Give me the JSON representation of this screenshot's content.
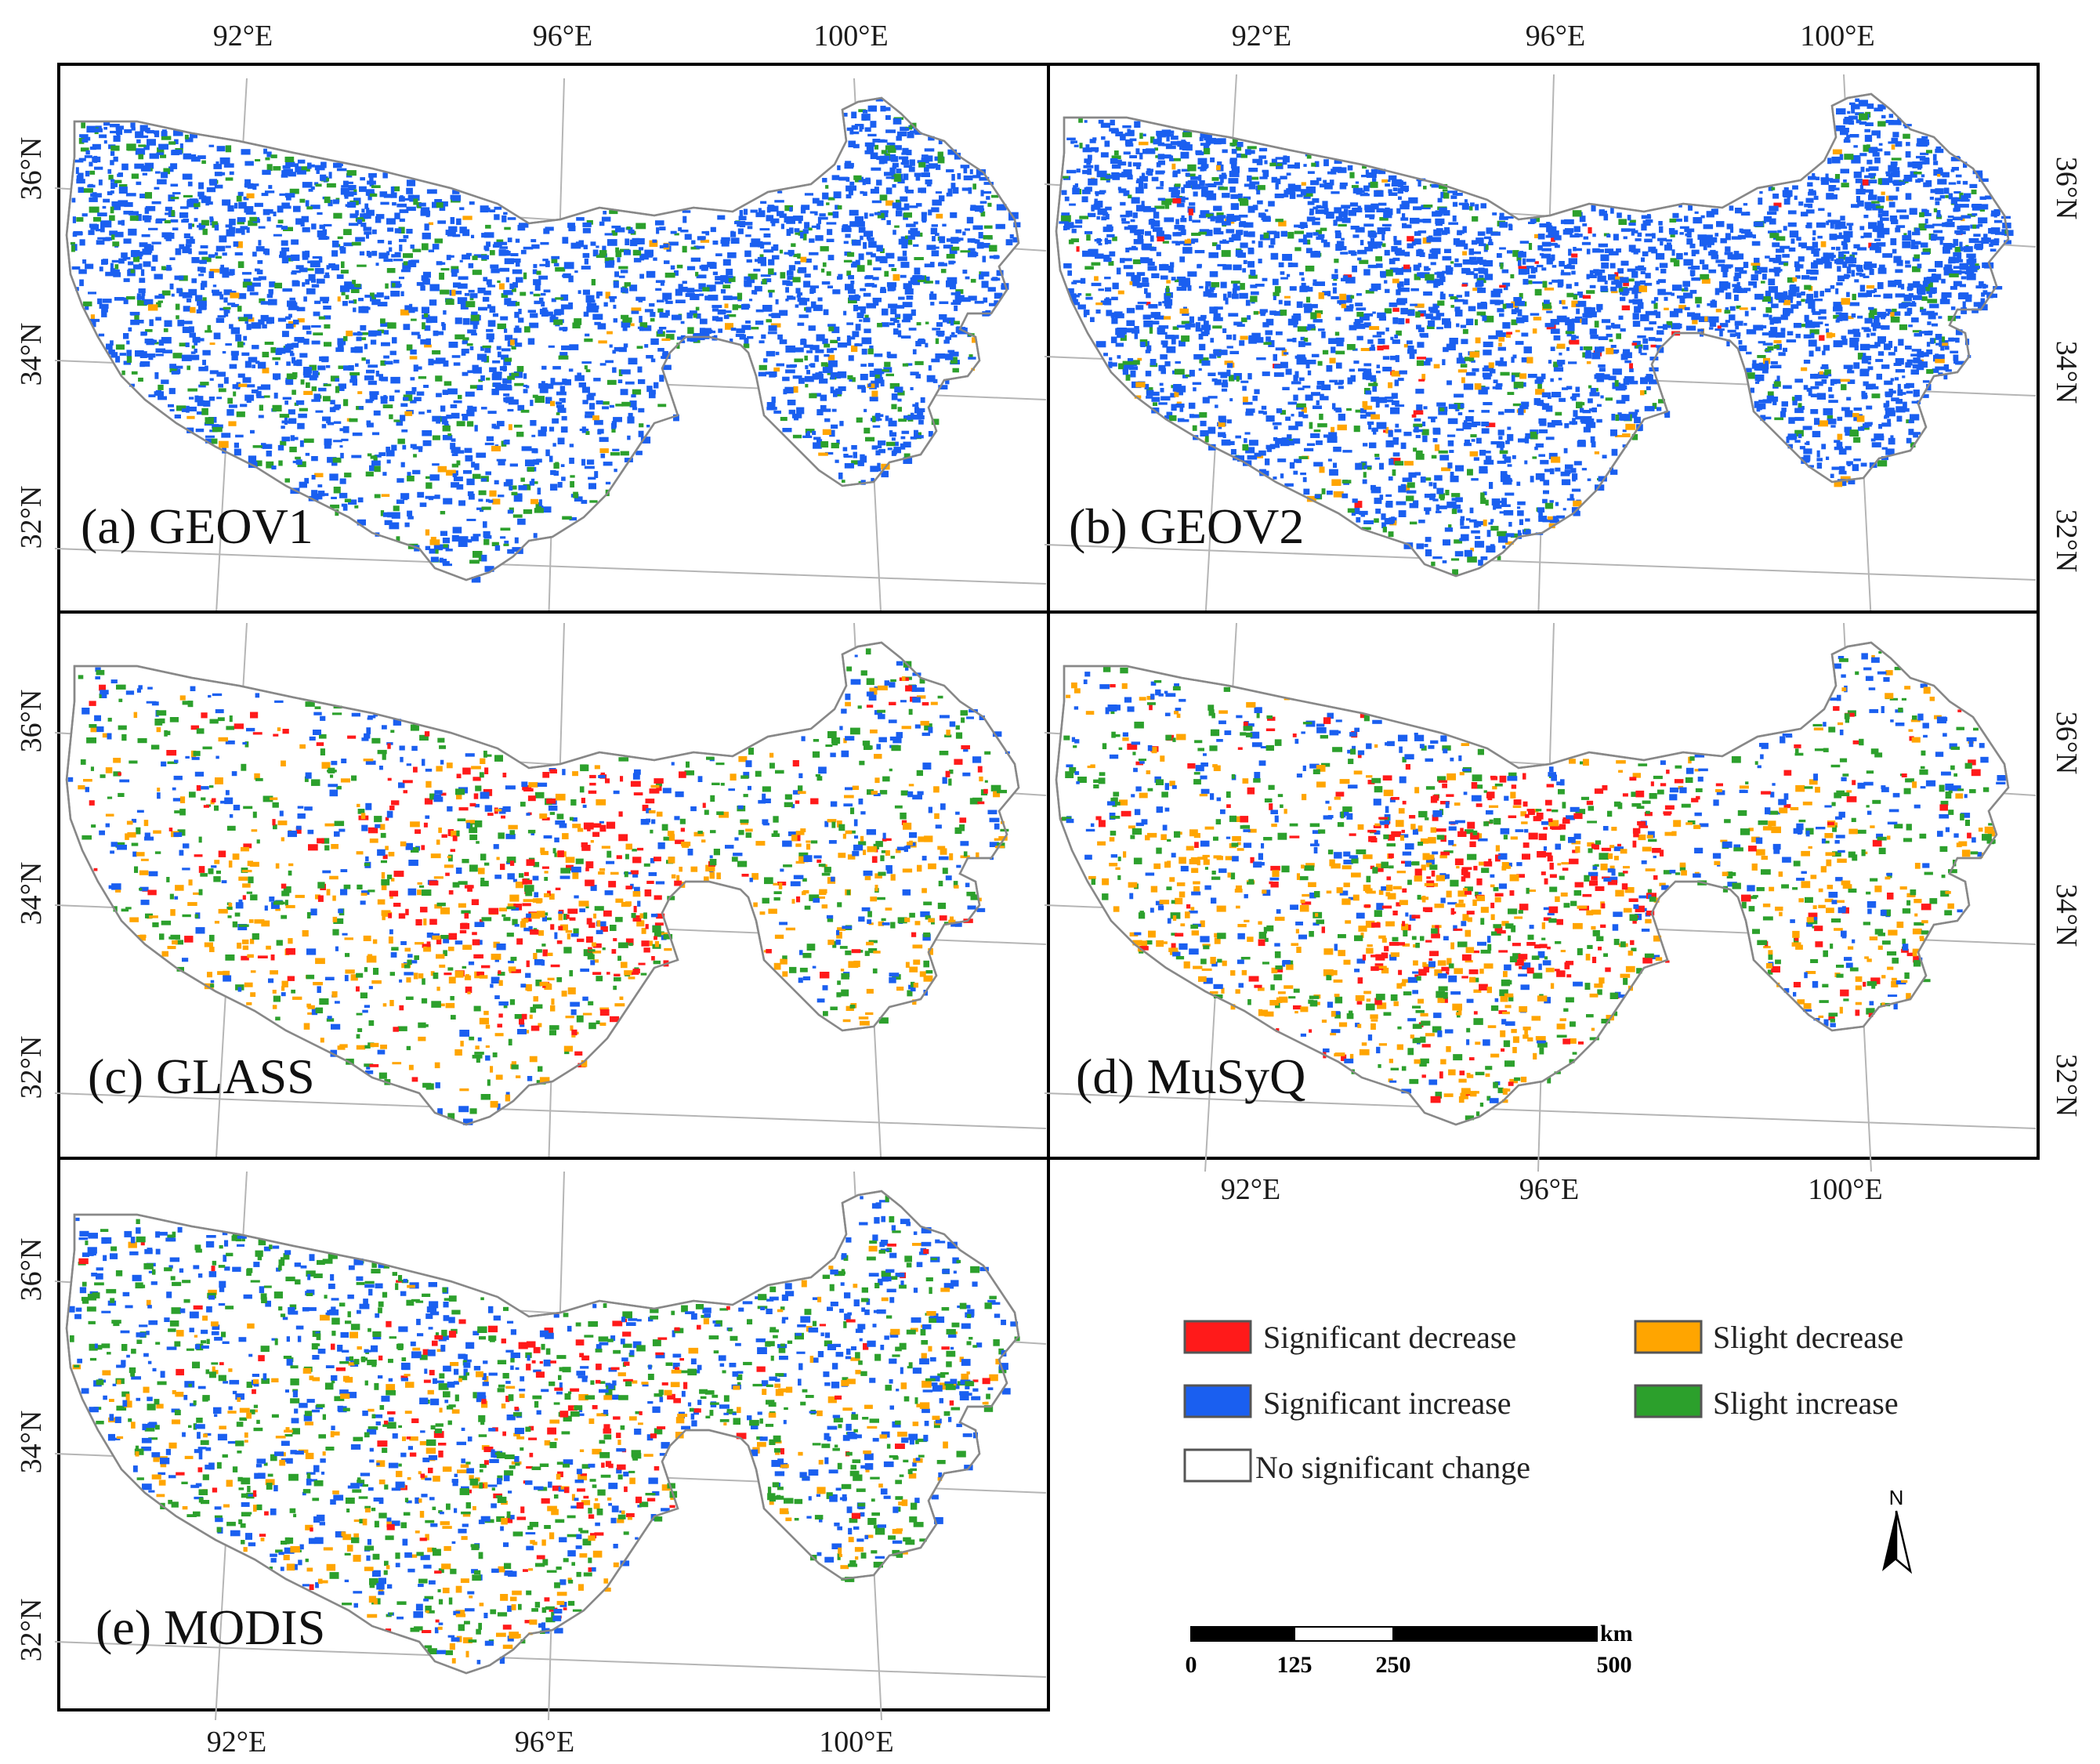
{
  "legend": {
    "items": [
      {
        "label": "Significant decrease",
        "color": "#ff1a1a"
      },
      {
        "label": "Slight decrease",
        "color": "#ffa500"
      },
      {
        "label": "Significant increase",
        "color": "#1a5ff0"
      },
      {
        "label": "Slight increase",
        "color": "#2ca02c"
      },
      {
        "label": "No significant change",
        "color": "#ffffff"
      }
    ]
  },
  "scale_bar": {
    "unit": "km",
    "ticks": [
      "0",
      "125",
      "250",
      "500"
    ]
  },
  "north_arrow": {
    "label": "N"
  },
  "panels": [
    {
      "id": "a",
      "title": "(a) GEOV1",
      "top_ticks": [
        "92°E",
        "96°E",
        "100°E"
      ],
      "bottom_ticks": [],
      "left_ticks": [
        "36°N",
        "34°N",
        "32°N"
      ],
      "right_ticks": [],
      "density": {
        "blue": 0.55,
        "green": 0.12,
        "red": 0.0,
        "orange": 0.01
      }
    },
    {
      "id": "b",
      "title": "(b) GEOV2",
      "top_ticks": [
        "92°E",
        "96°E",
        "100°E"
      ],
      "bottom_ticks": [],
      "left_ticks": [],
      "right_ticks": [
        "36°N",
        "34°N",
        "32°N"
      ],
      "density": {
        "blue": 0.7,
        "green": 0.08,
        "red": 0.01,
        "orange": 0.02
      }
    },
    {
      "id": "c",
      "title": "(c) GLASS",
      "top_ticks": [],
      "bottom_ticks": [],
      "left_ticks": [
        "36°N",
        "34°N",
        "32°N"
      ],
      "right_ticks": [],
      "density": {
        "blue": 0.1,
        "green": 0.1,
        "red": 0.05,
        "orange": 0.06
      }
    },
    {
      "id": "d",
      "title": "(d) MuSyQ",
      "top_ticks": [],
      "bottom_ticks": [
        "92°E",
        "96°E",
        "100°E"
      ],
      "left_ticks": [],
      "right_ticks": [
        "36°N",
        "34°N",
        "32°N"
      ],
      "density": {
        "blue": 0.1,
        "green": 0.1,
        "red": 0.06,
        "orange": 0.08
      }
    },
    {
      "id": "e",
      "title": "(e) MODIS",
      "top_ticks": [],
      "bottom_ticks": [
        "92°E",
        "96°E",
        "100°E"
      ],
      "left_ticks": [
        "36°N",
        "34°N",
        "32°N"
      ],
      "right_ticks": [],
      "density": {
        "blue": 0.18,
        "green": 0.14,
        "red": 0.03,
        "orange": 0.04
      }
    }
  ]
}
